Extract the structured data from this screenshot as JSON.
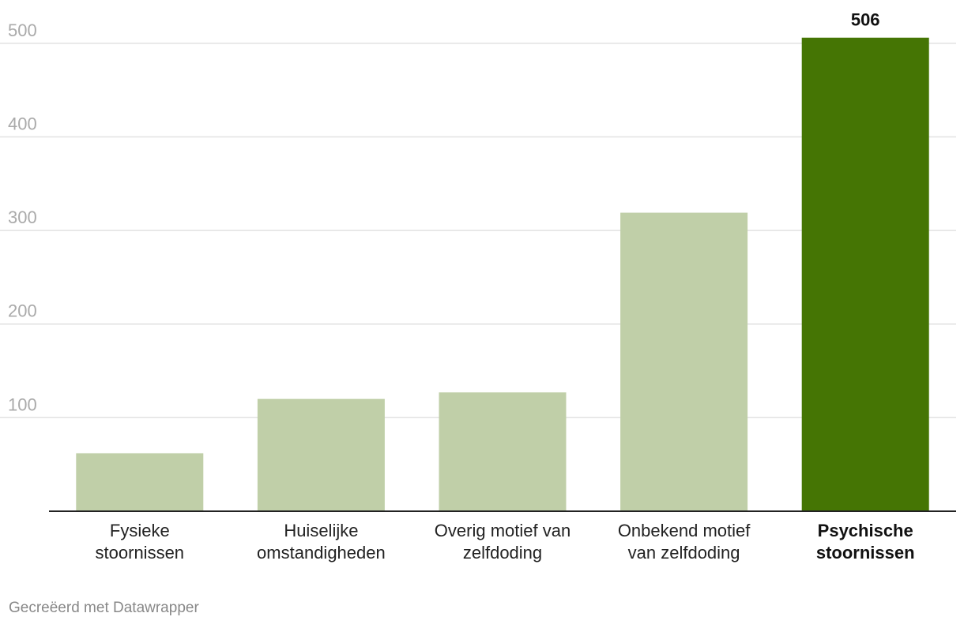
{
  "chart_data": {
    "type": "bar",
    "categories": [
      [
        "Fysieke",
        "stoornissen"
      ],
      [
        "Huiselijke",
        "omstandigheden"
      ],
      [
        "Overig motief van",
        "zelfdoding"
      ],
      [
        "Onbekend motief",
        "van zelfdoding"
      ],
      [
        "Psychische",
        "stoornissen"
      ]
    ],
    "values": [
      62,
      120,
      127,
      319,
      506
    ],
    "yticks": [
      100,
      200,
      300,
      400,
      500
    ],
    "ylim": [
      0,
      510
    ],
    "grid": true,
    "highlight_index": 4,
    "labeled_values": [
      506
    ],
    "colors": {
      "bar": "#c0cfa8",
      "highlight": "#457504",
      "grid": "#e2e2e2",
      "axis": "#222222"
    }
  },
  "footer": {
    "credit": "Gecreëerd met Datawrapper"
  }
}
